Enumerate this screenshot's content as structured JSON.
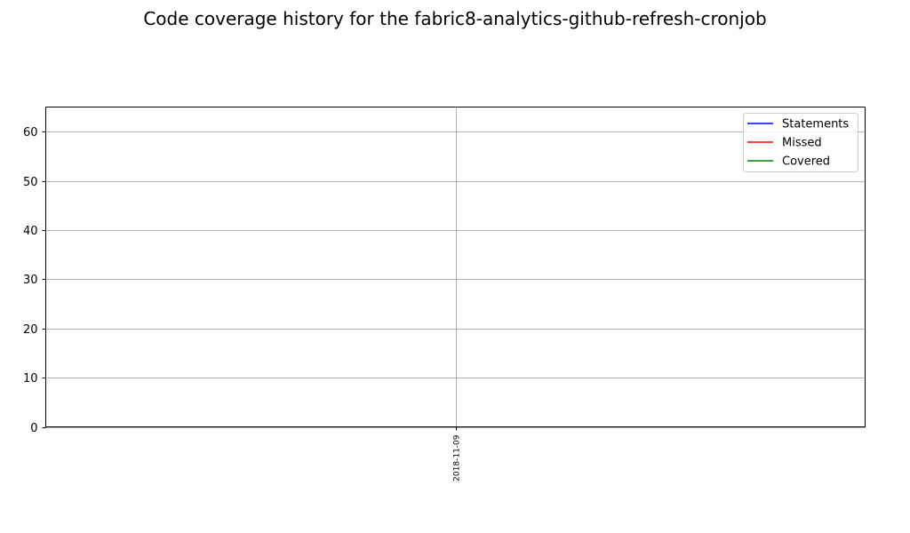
{
  "chart_data": {
    "type": "line",
    "title": "Code coverage history for the fabric8-analytics-github-refresh-cronjob",
    "xlabel": "",
    "ylabel": "",
    "x": [
      "2018-11-09"
    ],
    "series": [
      {
        "name": "Statements",
        "color": "#0000ff",
        "values": [
          null
        ]
      },
      {
        "name": "Missed",
        "color": "#ff0000",
        "values": [
          null
        ]
      },
      {
        "name": "Covered",
        "color": "#008000",
        "values": [
          null
        ]
      }
    ],
    "ylim": [
      0,
      65
    ],
    "yticks": [
      0,
      10,
      20,
      30,
      40,
      50,
      60
    ],
    "xticks": [
      "2018-11-09"
    ],
    "grid": true,
    "legend_position": "top-right"
  }
}
